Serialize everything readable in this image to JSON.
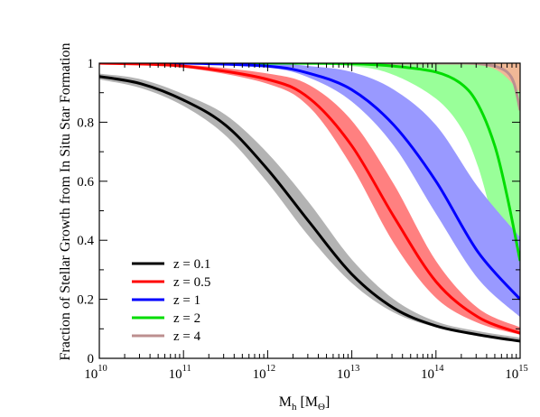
{
  "chart_data": {
    "type": "line",
    "title": "",
    "xlabel": {
      "main": "M",
      "sub": "h",
      "unit_open": " [M",
      "unit_sub": "Θ",
      "unit_close": "]"
    },
    "ylabel": "Fraction of Stellar Growth from In Situ Star Formation",
    "x_scale": "log",
    "xlim": [
      10000000000.0,
      1000000000000000.0
    ],
    "ylim": [
      0,
      1
    ],
    "grid": false,
    "x_ticks": [
      {
        "value": 10000000000.0,
        "base": "10",
        "exp": "10"
      },
      {
        "value": 100000000000.0,
        "base": "10",
        "exp": "11"
      },
      {
        "value": 1000000000000.0,
        "base": "10",
        "exp": "12"
      },
      {
        "value": 10000000000000.0,
        "base": "10",
        "exp": "13"
      },
      {
        "value": 100000000000000.0,
        "base": "10",
        "exp": "14"
      },
      {
        "value": 1000000000000000.0,
        "base": "10",
        "exp": "15"
      }
    ],
    "y_ticks": [
      {
        "value": 0,
        "label": "0"
      },
      {
        "value": 0.2,
        "label": "0.2"
      },
      {
        "value": 0.4,
        "label": "0.4"
      },
      {
        "value": 0.6,
        "label": "0.6"
      },
      {
        "value": 0.8,
        "label": "0.8"
      },
      {
        "value": 1,
        "label": "1"
      }
    ],
    "legend_position": "lower-left",
    "series": [
      {
        "name": "z = 0.1",
        "line_color": "#000000",
        "band_color": "#b3b3b3",
        "x": [
          10000000000.0,
          31600000000.0,
          100000000000.0,
          316000000000.0,
          1000000000000.0,
          3160000000000.0,
          10000000000000.0,
          31600000000000.0,
          100000000000000.0,
          316000000000000.0,
          1000000000000000.0
        ],
        "y": [
          0.955,
          0.93,
          0.875,
          0.79,
          0.64,
          0.46,
          0.285,
          0.17,
          0.11,
          0.08,
          0.058
        ],
        "band_low": [
          0.945,
          0.915,
          0.855,
          0.755,
          0.595,
          0.41,
          0.255,
          0.155,
          0.105,
          0.078,
          0.06
        ],
        "band_high": [
          0.965,
          0.945,
          0.895,
          0.825,
          0.695,
          0.525,
          0.335,
          0.2,
          0.125,
          0.092,
          0.07
        ]
      },
      {
        "name": "z = 0.5",
        "line_color": "#ff0000",
        "band_color": "#ff8080",
        "x": [
          10000000000.0,
          100000000000.0,
          1000000000000.0,
          3160000000000.0,
          10000000000000.0,
          31600000000000.0,
          100000000000000.0,
          316000000000000.0,
          1000000000000000.0
        ],
        "y": [
          1.0,
          0.99,
          0.945,
          0.88,
          0.72,
          0.48,
          0.26,
          0.14,
          0.085
        ],
        "band_low": [
          1.0,
          0.985,
          0.93,
          0.85,
          0.65,
          0.39,
          0.205,
          0.12,
          0.08
        ],
        "band_high": [
          1.0,
          0.995,
          0.965,
          0.925,
          0.805,
          0.59,
          0.33,
          0.17,
          0.105
        ]
      },
      {
        "name": "z = 1",
        "line_color": "#0000ff",
        "band_color": "#9999ff",
        "x": [
          10000000000.0,
          100000000000.0,
          1000000000000.0,
          3160000000000.0,
          10000000000000.0,
          31600000000000.0,
          100000000000000.0,
          316000000000000.0,
          1000000000000000.0
        ],
        "y": [
          1.0,
          1.0,
          0.99,
          0.965,
          0.91,
          0.79,
          0.6,
          0.36,
          0.2
        ],
        "band_low": [
          1.0,
          1.0,
          0.985,
          0.95,
          0.87,
          0.72,
          0.49,
          0.27,
          0.14
        ],
        "band_high": [
          1.0,
          1.0,
          1.0,
          0.99,
          0.97,
          0.91,
          0.79,
          0.58,
          0.41
        ]
      },
      {
        "name": "z = 2",
        "line_color": "#00dd00",
        "band_color": "#99ff99",
        "x": [
          10000000000.0,
          100000000000.0,
          1000000000000.0,
          10000000000000.0,
          31600000000000.0,
          100000000000000.0,
          200000000000000.0,
          316000000000000.0,
          500000000000000.0,
          700000000000000.0,
          1000000000000000.0
        ],
        "y": [
          1.0,
          1.0,
          1.0,
          0.998,
          0.99,
          0.97,
          0.93,
          0.86,
          0.72,
          0.55,
          0.33
        ],
        "band_low": [
          1.0,
          1.0,
          1.0,
          0.99,
          0.96,
          0.88,
          0.78,
          0.65,
          0.45,
          0.33,
          0.2
        ],
        "band_high": [
          1.0,
          1.0,
          1.0,
          1.0,
          1.0,
          1.0,
          1.0,
          0.995,
          0.98,
          0.95,
          0.9
        ]
      },
      {
        "name": "z = 4",
        "line_color": "#bc8f8f",
        "band_color": "#f0b896",
        "x": [
          10000000000.0,
          1000000000000.0,
          10000000000000.0,
          100000000000000.0,
          200000000000000.0,
          316000000000000.0,
          500000000000000.0,
          700000000000000.0,
          850000000000000.0,
          1000000000000000.0
        ],
        "y": [
          1.0,
          1.0,
          1.0,
          1.0,
          1.0,
          0.998,
          0.99,
          0.97,
          0.93,
          0.84
        ],
        "band_low": [
          1.0,
          1.0,
          1.0,
          0.995,
          0.97,
          0.93,
          0.87,
          0.8,
          0.75,
          0.7
        ],
        "band_high": [
          1.0,
          1.0,
          1.0,
          1.0,
          1.0,
          1.0,
          1.0,
          1.0,
          1.0,
          1.0
        ]
      }
    ]
  }
}
